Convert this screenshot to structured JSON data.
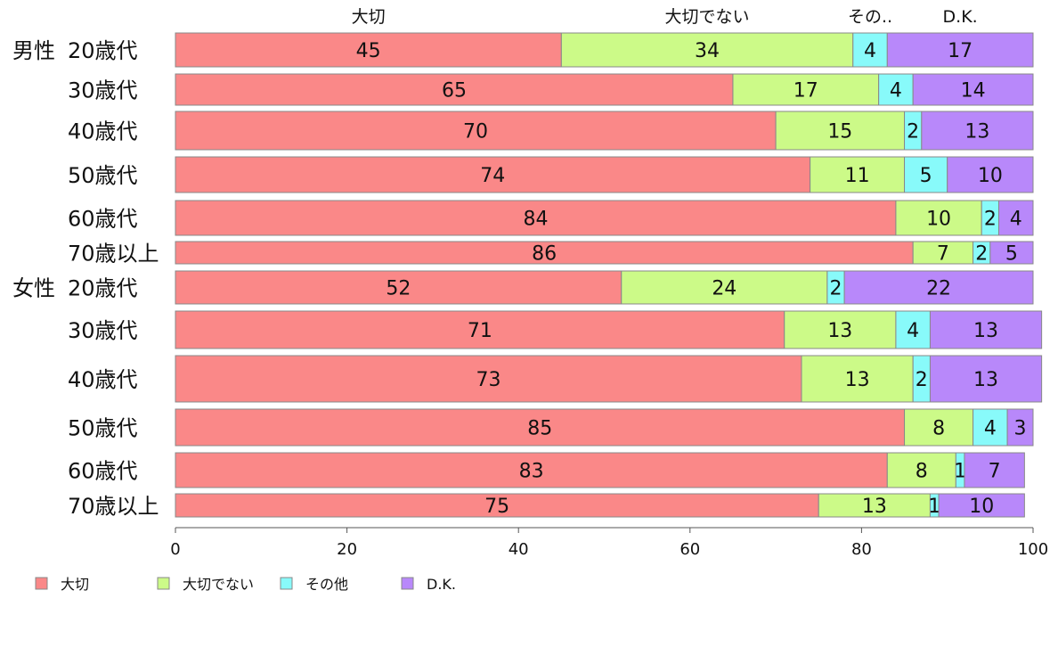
{
  "chart_data": {
    "type": "bar",
    "orientation": "horizontal",
    "stacked": true,
    "xlim": [
      0,
      100
    ],
    "x_ticks": [
      "0",
      "20",
      "40",
      "60",
      "80",
      "100"
    ],
    "grid": false,
    "legend_position": "bottom",
    "top_labels": [
      "大切",
      "大切でない",
      "その..",
      "D.K."
    ],
    "groups": [
      {
        "name": "男性",
        "rows": [
          "20歳代",
          "30歳代",
          "40歳代",
          "50歳代",
          "60歳代",
          "70歳以上"
        ]
      },
      {
        "name": "女性",
        "rows": [
          "20歳代",
          "30歳代",
          "40歳代",
          "50歳代",
          "60歳代",
          "70歳以上"
        ]
      }
    ],
    "series": [
      {
        "name": "大切",
        "color": "#fa8888",
        "values": [
          45,
          65,
          70,
          74,
          84,
          86,
          52,
          71,
          73,
          85,
          83,
          75
        ]
      },
      {
        "name": "大切でない",
        "color": "#ccfa88",
        "values": [
          34,
          17,
          15,
          11,
          10,
          7,
          24,
          13,
          13,
          8,
          8,
          13
        ]
      },
      {
        "name": "その他",
        "color": "#88fafa",
        "values": [
          4,
          4,
          2,
          5,
          2,
          2,
          2,
          4,
          2,
          4,
          1,
          1
        ]
      },
      {
        "name": "D.K.",
        "color": "#b888fa",
        "values": [
          17,
          14,
          13,
          10,
          4,
          5,
          22,
          13,
          13,
          3,
          7,
          10
        ]
      }
    ]
  }
}
